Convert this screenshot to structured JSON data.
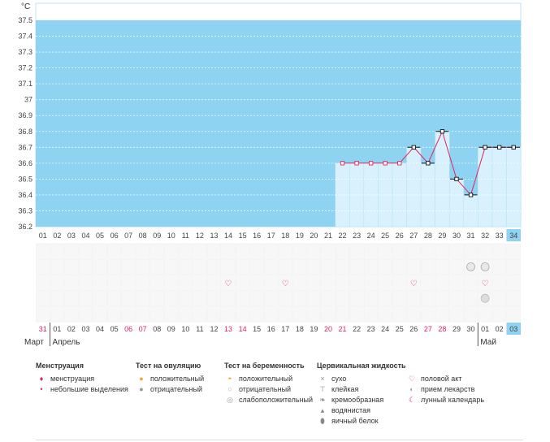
{
  "chart_data": {
    "type": "line",
    "unit_label": "°C",
    "ylim": [
      36.2,
      37.5
    ],
    "y_ticks": [
      "36.2",
      "36.3",
      "36.4",
      "36.5",
      "36.6",
      "36.7",
      "36.8",
      "36.9",
      "37",
      "37.1",
      "37.2",
      "37.3",
      "37.4",
      "37.5"
    ],
    "cycle_days": [
      "01",
      "02",
      "03",
      "04",
      "05",
      "06",
      "07",
      "08",
      "09",
      "10",
      "11",
      "12",
      "13",
      "14",
      "15",
      "16",
      "17",
      "18",
      "19",
      "20",
      "21",
      "22",
      "23",
      "24",
      "25",
      "26",
      "27",
      "28",
      "29",
      "30",
      "31",
      "32",
      "33",
      "34"
    ],
    "current_day": "34",
    "dates": [
      "31",
      "01",
      "02",
      "03",
      "04",
      "05",
      "06",
      "07",
      "08",
      "09",
      "10",
      "11",
      "12",
      "13",
      "14",
      "15",
      "16",
      "17",
      "18",
      "19",
      "20",
      "21",
      "22",
      "23",
      "24",
      "25",
      "26",
      "27",
      "28",
      "29",
      "30",
      "01",
      "02",
      "03"
    ],
    "red_date_indices": [
      0,
      6,
      7,
      13,
      14,
      20,
      21,
      27,
      28
    ],
    "months": [
      "Март",
      "Апрель",
      "Май"
    ],
    "series": [
      {
        "x": [
          22,
          23,
          24,
          25,
          26,
          27,
          28,
          29,
          30,
          31,
          32,
          33,
          34
        ],
        "values": [
          36.6,
          36.6,
          36.6,
          36.6,
          36.6,
          36.7,
          36.6,
          36.8,
          36.5,
          36.4,
          36.7,
          36.7,
          36.7
        ],
        "color": "#e0245e"
      }
    ],
    "intercourse_days": [
      14,
      18,
      27,
      32
    ],
    "medication_days": [
      32
    ],
    "pregnancy_test_negative_days": [
      31,
      32
    ],
    "colors": {
      "area": "#8fd3f2",
      "cycle_bar": "#d8f1fc",
      "line": "#e0245e",
      "highlight": "#8fd3f2"
    }
  },
  "legend": {
    "groups": [
      {
        "title": "Менструация",
        "items": [
          {
            "icon": "drop-icon",
            "label": "менструация"
          },
          {
            "icon": "small-drop-icon",
            "label": "небольшие выделения"
          }
        ]
      },
      {
        "title": "Тест на овуляцию",
        "items": [
          {
            "icon": "egg-positive-icon",
            "label": "положительный"
          },
          {
            "icon": "egg-negative-icon",
            "label": "отрицательный"
          }
        ]
      },
      {
        "title": "Тест на беременность",
        "items": [
          {
            "icon": "preg-positive-icon",
            "label": "положительный"
          },
          {
            "icon": "preg-negative-icon",
            "label": "отрицательный"
          },
          {
            "icon": "preg-weak-icon",
            "label": "слабоположительный"
          }
        ]
      },
      {
        "title": "Цервикальная жидкость",
        "items": [
          {
            "icon": "dry-icon",
            "label": "сухо"
          },
          {
            "icon": "sticky-icon",
            "label": "клейкая"
          },
          {
            "icon": "creamy-icon",
            "label": "кремообразная"
          },
          {
            "icon": "watery-icon",
            "label": "водянистая"
          },
          {
            "icon": "egg-white-icon",
            "label": "яичный белок"
          }
        ]
      },
      {
        "title": "",
        "items": [
          {
            "icon": "heart-icon",
            "label": "половой акт"
          },
          {
            "icon": "pill-icon",
            "label": "прием лекарств"
          },
          {
            "icon": "moon-icon",
            "label": "лунный календарь"
          }
        ]
      }
    ]
  }
}
